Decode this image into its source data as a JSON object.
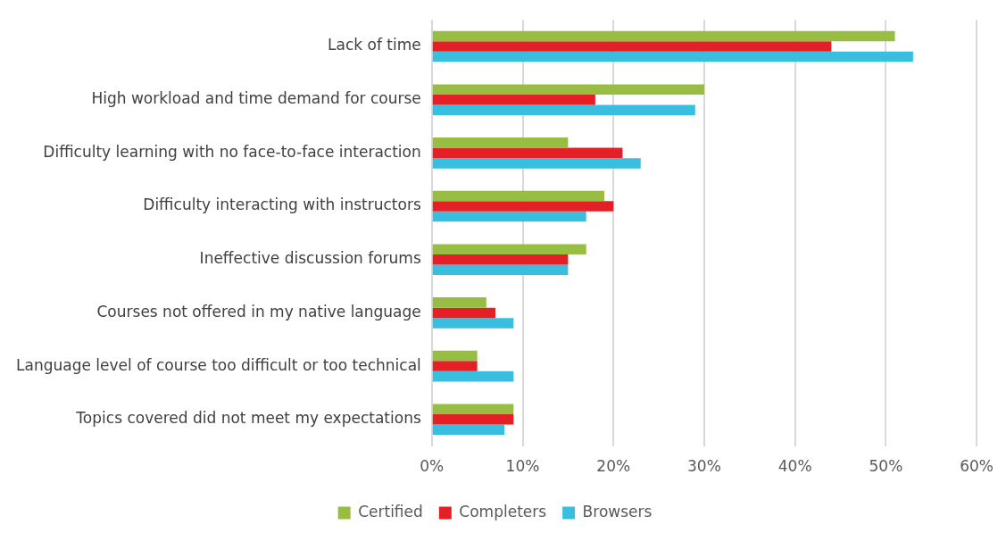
{
  "chart_data": {
    "type": "bar",
    "orientation": "horizontal",
    "categories": [
      "Lack of time",
      "High workload and time demand for course",
      "Difficulty learning with no face-to-face interaction",
      "Difficulty interacting with instructors",
      "Ineffective discussion forums",
      "Courses not offered in my native language",
      "Language level of course too difficult or too technical",
      "Topics covered did not meet my expectations"
    ],
    "series": [
      {
        "name": "Certified",
        "color": "#97bd42",
        "values": [
          51,
          30,
          15,
          19,
          17,
          6,
          5,
          9
        ]
      },
      {
        "name": "Completers",
        "color": "#e41f26",
        "values": [
          44,
          18,
          21,
          20,
          15,
          7,
          5,
          9
        ]
      },
      {
        "name": "Browsers",
        "color": "#39bee0",
        "values": [
          53,
          29,
          23,
          17,
          15,
          9,
          9,
          8
        ]
      }
    ],
    "xlim": [
      0,
      60
    ],
    "xticks": [
      {
        "value": 0,
        "label": "0%"
      },
      {
        "value": 10,
        "label": "10%"
      },
      {
        "value": 20,
        "label": "20%"
      },
      {
        "value": 30,
        "label": "30%"
      },
      {
        "value": 40,
        "label": "40%"
      },
      {
        "value": 50,
        "label": "50%"
      },
      {
        "value": 60,
        "label": "60%"
      }
    ],
    "grid": "x",
    "legend": "bottom"
  }
}
